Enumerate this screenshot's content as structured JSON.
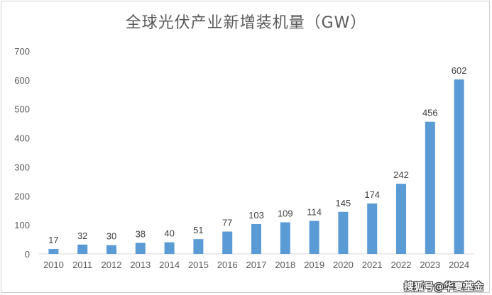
{
  "chart_data": {
    "type": "bar",
    "title": "全球光伏产业新增装机量（GW）",
    "categories": [
      "2010",
      "2011",
      "2012",
      "2013",
      "2014",
      "2015",
      "2016",
      "2017",
      "2018",
      "2019",
      "2020",
      "2021",
      "2022",
      "2023",
      "2024"
    ],
    "values": [
      17,
      32,
      30,
      38,
      40,
      51,
      77,
      103,
      109,
      114,
      145,
      174,
      242,
      456,
      602
    ],
    "ylim": [
      0,
      700
    ],
    "yticks": [
      0,
      100,
      200,
      300,
      400,
      500,
      600,
      700
    ],
    "grid": false,
    "legend": "none",
    "bar_color": "#5b9bd5"
  },
  "watermark": "搜狐号@华夏基金"
}
